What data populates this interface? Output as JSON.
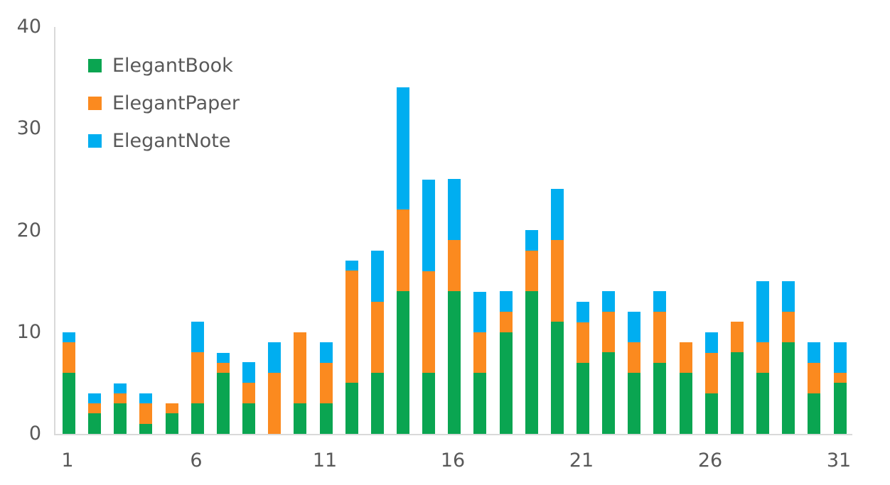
{
  "chart_data": {
    "type": "bar",
    "stacked": true,
    "title": "",
    "xlabel": "",
    "ylabel": "",
    "x": [
      1,
      2,
      3,
      4,
      5,
      6,
      7,
      8,
      9,
      10,
      11,
      12,
      13,
      14,
      15,
      16,
      17,
      18,
      19,
      20,
      21,
      22,
      23,
      24,
      25,
      26,
      27,
      28,
      29,
      30,
      31
    ],
    "series": [
      {
        "name": "ElegantBook",
        "color": "#0aa551",
        "values": [
          6,
          2,
          3,
          1,
          2,
          3,
          6,
          3,
          0,
          3,
          3,
          5,
          6,
          14,
          6,
          14,
          6,
          10,
          14,
          11,
          7,
          8,
          6,
          7,
          6,
          4,
          8,
          6,
          9,
          4,
          5
        ]
      },
      {
        "name": "ElegantPaper",
        "color": "#fb8a1f",
        "values": [
          3,
          1,
          1,
          2,
          1,
          5,
          1,
          2,
          6,
          7,
          4,
          11,
          7,
          8,
          10,
          5,
          4,
          2,
          4,
          8,
          4,
          4,
          3,
          5,
          3,
          4,
          3,
          3,
          3,
          3,
          1
        ]
      },
      {
        "name": "ElegantNote",
        "color": "#00aef0",
        "values": [
          1,
          1,
          1,
          1,
          0,
          3,
          1,
          2,
          3,
          0,
          2,
          1,
          5,
          12,
          9,
          6,
          4,
          2,
          2,
          5,
          2,
          2,
          3,
          2,
          0,
          2,
          0,
          6,
          3,
          2,
          3
        ]
      }
    ],
    "totals": [
      10,
      4,
      5,
      4,
      3,
      11,
      8,
      7,
      9,
      10,
      9,
      17,
      18,
      34,
      25,
      25,
      14,
      14,
      20,
      24,
      13,
      14,
      12,
      14,
      9,
      10,
      11,
      15,
      15,
      9,
      9
    ],
    "ylim": [
      0,
      40
    ],
    "yticks": [
      0,
      10,
      20,
      30,
      40
    ],
    "xticks": [
      1,
      6,
      11,
      16,
      21,
      26,
      31
    ],
    "grid": false,
    "legend_position": "top-left-inside",
    "legend_entries": [
      "ElegantBook",
      "ElegantPaper",
      "ElegantNote"
    ],
    "colors": {
      "axis_line": "#d9d9d9",
      "tick_label": "#595959",
      "background": "#ffffff"
    }
  }
}
